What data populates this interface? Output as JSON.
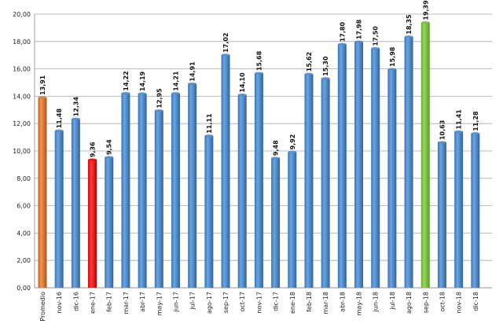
{
  "chart_data": {
    "type": "bar",
    "title": "",
    "xlabel": "",
    "ylabel": "",
    "ylim": [
      0,
      20
    ],
    "ytick_step": 2,
    "ytick_labels": [
      "0,00",
      "2,00",
      "4,00",
      "6,00",
      "8,00",
      "10,00",
      "12,00",
      "14,00",
      "16,00",
      "18,00",
      "20,00"
    ],
    "grid": true,
    "legend": "none",
    "categories": [
      "Promedio",
      "nov-16",
      "dic-16",
      "ene-17",
      "feb-17",
      "mar-17",
      "abr-17",
      "may-17",
      "jun-17",
      "jul-17",
      "ago-17",
      "sep-17",
      "oct-17",
      "nov-17",
      "dic-17",
      "ene-18",
      "feb-18",
      "mar-18",
      "abr-18",
      "may-18",
      "jun-18",
      "jul-18",
      "ago-18",
      "sep-18",
      "oct-18",
      "nov-18",
      "dic-18"
    ],
    "values": [
      13.91,
      11.48,
      12.34,
      9.36,
      9.54,
      14.22,
      14.19,
      12.95,
      14.21,
      14.91,
      11.11,
      17.02,
      14.1,
      15.68,
      9.48,
      9.92,
      15.62,
      15.3,
      17.8,
      17.98,
      17.5,
      15.98,
      18.35,
      19.39,
      10.63,
      11.41,
      11.28
    ],
    "value_labels": [
      "13,91",
      "11,48",
      "12,34",
      "9,36",
      "9,54",
      "14,22",
      "14,19",
      "12,95",
      "14,21",
      "14,91",
      "11,11",
      "17,02",
      "14,10",
      "15,68",
      "9,48",
      "9,92",
      "15,62",
      "15,30",
      "17,80",
      "17,98",
      "17,50",
      "15,98",
      "18,35",
      "19,39",
      "10,63",
      "11,41",
      "11,28"
    ],
    "colors": {
      "default": "#4f8fd0",
      "average": "#e07b39",
      "minimum": "#ff0000",
      "maximum": "#7cc243"
    },
    "highlight": {
      "Promedio": "average",
      "ene-17": "minimum",
      "sep-18": "maximum"
    }
  }
}
